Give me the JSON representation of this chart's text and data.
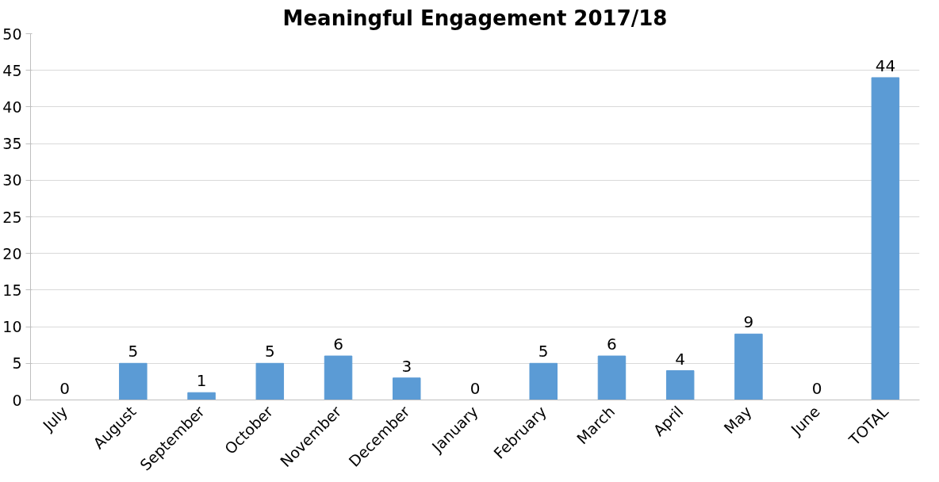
{
  "chart_data": {
    "type": "bar",
    "title": "Meaningful Engagement 2017/18",
    "categories": [
      "July",
      "August",
      "September",
      "October",
      "November",
      "December",
      "January",
      "February",
      "March",
      "April",
      "May",
      "June",
      "TOTAL"
    ],
    "values": [
      0,
      5,
      1,
      5,
      6,
      3,
      0,
      5,
      6,
      4,
      9,
      0,
      44
    ],
    "color": "#5b9bd5",
    "ylim": [
      0,
      50
    ],
    "yticks": [
      0,
      5,
      10,
      15,
      20,
      25,
      30,
      35,
      40,
      45,
      50
    ],
    "grid": "y",
    "data_labels": true
  }
}
